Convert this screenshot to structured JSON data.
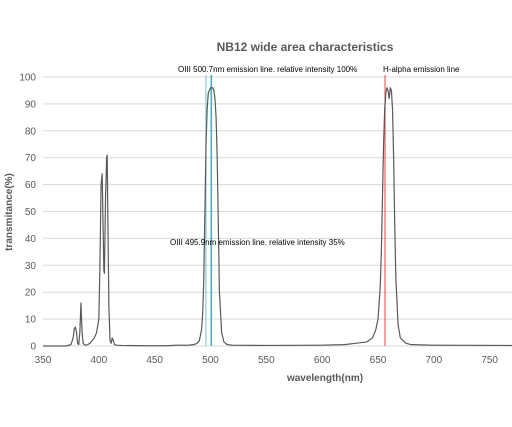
{
  "chart_data": {
    "type": "line",
    "title": "NB12 wide area characteristics",
    "xlabel": "wavelength(nm)",
    "ylabel": "transmitance(%)",
    "xlim": [
      350,
      770
    ],
    "ylim": [
      0,
      100
    ],
    "x_ticks": [
      "350",
      "400",
      "450",
      "500",
      "550",
      "600",
      "650",
      "700",
      "750"
    ],
    "y_ticks": [
      "0",
      "10",
      "20",
      "30",
      "40",
      "50",
      "60",
      "70",
      "80",
      "90",
      "100"
    ],
    "grid": true,
    "colors": {
      "curve": "#595959",
      "oiii_500_7": "#4bacc6",
      "oiii_495_9": "#8cc8d8",
      "h_alpha": "#e06666"
    },
    "series": [
      {
        "x": [
          350,
          360,
          370,
          375,
          377,
          378,
          379,
          380,
          381,
          382,
          383,
          384,
          385,
          386,
          387,
          388,
          390,
          392,
          394,
          396,
          398,
          400,
          401,
          402,
          403,
          404,
          404.5,
          405,
          406,
          407,
          407.5,
          408,
          409,
          410,
          411,
          412,
          413,
          414,
          416,
          420,
          440,
          460,
          470,
          480,
          485,
          488,
          490,
          492,
          493,
          494,
          495,
          496,
          497,
          498,
          500,
          502,
          503,
          504,
          505,
          506,
          507,
          508,
          510,
          512,
          515,
          520,
          550,
          600,
          620,
          630,
          640,
          645,
          648,
          650,
          652,
          653,
          654,
          655,
          656,
          657,
          658,
          659,
          660,
          661,
          662,
          663,
          664,
          665,
          666,
          668,
          670,
          675,
          680,
          700,
          770
        ],
        "y": [
          0,
          0,
          0,
          0.5,
          3,
          6.5,
          7,
          5,
          1,
          0.5,
          5,
          16,
          5,
          1,
          0.5,
          0.3,
          0.5,
          1,
          2,
          3,
          5,
          10,
          30,
          60,
          64,
          40,
          28,
          27,
          55,
          70,
          71,
          50,
          15,
          2,
          1,
          3,
          2,
          0.5,
          0.3,
          0.2,
          0.1,
          0.1,
          0.3,
          0.3,
          0.5,
          1,
          2,
          6,
          12,
          25,
          50,
          75,
          88,
          94,
          96,
          96,
          95,
          92,
          85,
          70,
          45,
          20,
          5,
          1.5,
          0.5,
          0.3,
          0.2,
          0.3,
          0.5,
          1,
          1.5,
          3,
          6,
          10,
          22,
          35,
          55,
          75,
          88,
          94,
          96,
          95,
          92,
          96,
          95,
          88,
          70,
          45,
          25,
          8,
          3,
          1,
          0.5,
          0.3,
          0.2
        ]
      }
    ],
    "annotations": [
      {
        "text": "OIII 500.7nm emission line. relative intensity 100%",
        "x": 500.7
      },
      {
        "text": "OIII 495.9nm emission line.  relative intensity   35%",
        "x": 495.9
      },
      {
        "text": "H-alpha emission line",
        "x": 656.3
      }
    ]
  }
}
